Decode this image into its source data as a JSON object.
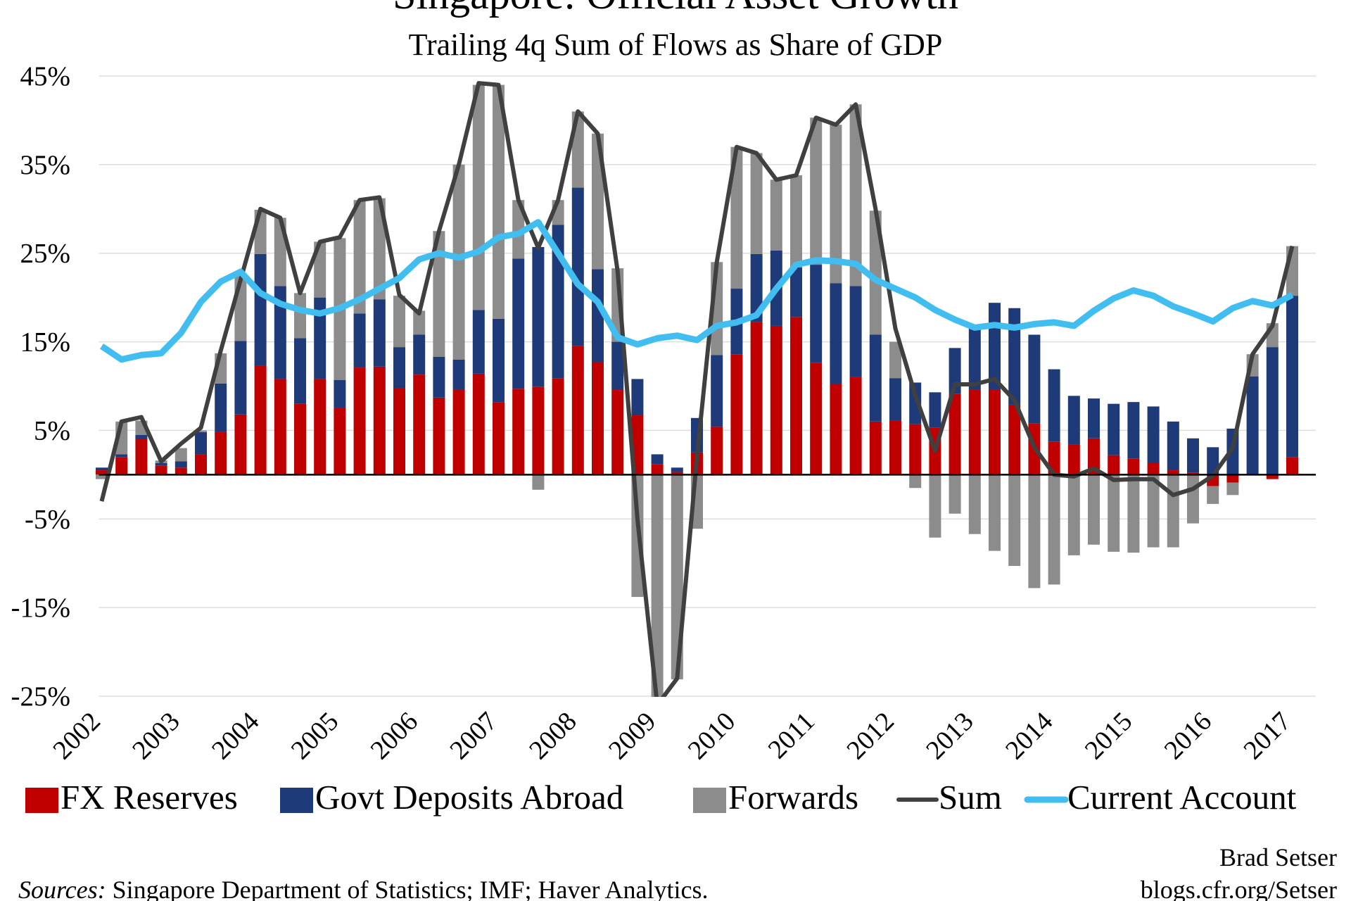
{
  "chart_data": {
    "type": "bar",
    "title": "Singapore: Official Asset Growth",
    "subtitle": "Trailing 4q Sum of Flows as Share of GDP",
    "source_label": "Sources:",
    "source": "Singapore Department of Statistics; IMF; Haver Analytics.",
    "author": "Brad Setser",
    "url": "blogs.cfr.org/Setser",
    "categories": [
      "2002",
      null,
      null,
      null,
      "2003",
      null,
      null,
      null,
      "2004",
      null,
      null,
      null,
      "2005",
      null,
      null,
      null,
      "2006",
      null,
      null,
      null,
      "2007",
      null,
      null,
      null,
      "2008",
      null,
      null,
      null,
      "2009",
      null,
      null,
      null,
      "2010",
      null,
      null,
      null,
      "2011",
      null,
      null,
      null,
      "2012",
      null,
      null,
      null,
      "2013",
      null,
      null,
      null,
      "2014",
      null,
      null,
      null,
      "2015",
      null,
      null,
      null,
      "2016",
      null,
      null,
      null,
      "2017"
    ],
    "series": [
      {
        "name": "FX Reserves",
        "type": "bar",
        "color": "#c00000",
        "values": [
          0.5,
          2,
          4,
          1,
          0.8,
          2.3,
          4.8,
          6.8,
          12.3,
          10.8,
          8,
          10.8,
          7.5,
          12.1,
          12.2,
          9.8,
          11.3,
          8.7,
          9.6,
          11.4,
          8.2,
          9.7,
          9.9,
          10.9,
          14.5,
          12.7,
          9.6,
          6.7,
          1.2,
          0.3,
          2.5,
          5.4,
          13.6,
          17.2,
          16.8,
          17.8,
          12.6,
          10.2,
          11,
          6,
          6.1,
          5.7,
          5.3,
          9.1,
          9.6,
          9.6,
          7.9,
          5.8,
          3.7,
          3.4,
          4.1,
          2.2,
          1.8,
          1.3,
          0.5,
          0.2,
          -1.3,
          -0.9,
          0.1,
          -0.5,
          2
        ]
      },
      {
        "name": "Govt Deposits Abroad",
        "type": "bar",
        "color": "#1f3a78",
        "values": [
          0.3,
          0.3,
          0.5,
          0.3,
          0.7,
          2.5,
          5.5,
          8.3,
          12.6,
          10.5,
          7.4,
          9.2,
          3.2,
          6.1,
          7.6,
          4.6,
          4.5,
          4.6,
          3.4,
          7.2,
          9.4,
          14.7,
          15.8,
          17.3,
          17.9,
          10.5,
          5.4,
          4.1,
          1.1,
          0.5,
          3.9,
          8.1,
          7.4,
          7.7,
          8.5,
          5.6,
          11.1,
          11.4,
          10.3,
          9.8,
          4.8,
          4.7,
          4,
          5.2,
          6.9,
          9.8,
          10.9,
          10,
          8.2,
          5.5,
          4.5,
          5.8,
          6.4,
          6.4,
          5.5,
          3.9,
          3.1,
          5.2,
          11,
          14.4,
          18.2
        ]
      },
      {
        "name": "Forwards",
        "type": "bar",
        "color": "#8c8c8c",
        "values": [
          -0.5,
          3.7,
          1.6,
          0.3,
          1.5,
          0.2,
          3.4,
          7.3,
          5,
          7.7,
          5.1,
          6.3,
          16,
          12.8,
          11.4,
          5.8,
          2.7,
          14.2,
          22,
          25.4,
          26.4,
          6.6,
          -1.7,
          2.8,
          8.6,
          15.3,
          8.3,
          -13.8,
          -26,
          -23.1,
          -6.1,
          10.5,
          16,
          11.4,
          8,
          10.4,
          16.6,
          17.9,
          20.5,
          14,
          4.1,
          -1.5,
          -7.1,
          -4.4,
          -6.7,
          -8.6,
          -10.3,
          -12.8,
          -12.4,
          -9.1,
          -7.9,
          -8.7,
          -8.8,
          -8.2,
          -8.2,
          -5.5,
          -2,
          -1.4,
          2.5,
          2.7,
          5.6
        ]
      },
      {
        "name": "Sum",
        "type": "line",
        "color": "#404040",
        "values": [
          -3,
          6,
          6.5,
          1.5,
          3.5,
          5.3,
          14,
          22,
          30,
          29,
          20.5,
          26.3,
          26.8,
          31,
          31.3,
          20.3,
          18.2,
          27.5,
          35,
          44.2,
          44,
          31,
          25.6,
          31,
          41,
          38.5,
          23,
          -5,
          -26,
          -23,
          2,
          24,
          37,
          36.3,
          33.3,
          33.8,
          40.3,
          39.5,
          41.8,
          30,
          16.5,
          9,
          2.7,
          10.2,
          10.2,
          10.8,
          8.4,
          3.1,
          0,
          -0.2,
          0.7,
          -0.6,
          -0.5,
          -0.5,
          -2.3,
          -1.6,
          -0.1,
          3,
          13.6,
          16.8,
          25.8
        ]
      },
      {
        "name": "Current Account",
        "type": "line",
        "color": "#41bdf0",
        "values": [
          14.5,
          13,
          13.5,
          13.7,
          16,
          19.5,
          21.8,
          22.9,
          20.5,
          19.3,
          18.6,
          18.2,
          18.8,
          19.8,
          21,
          22.2,
          24.3,
          25,
          24.5,
          25.2,
          26.8,
          27.2,
          28.5,
          25,
          21.5,
          19.5,
          15.5,
          14.7,
          15.4,
          15.7,
          15.2,
          16.8,
          17.2,
          18,
          21,
          23.7,
          24.2,
          24.1,
          23.8,
          22,
          21,
          20,
          18.6,
          17.5,
          16.6,
          16.9,
          16.6,
          17,
          17.2,
          16.8,
          18.5,
          19.9,
          20.8,
          20.2,
          19,
          18.2,
          17.3,
          18.8,
          19.6,
          19.1,
          20.3
        ]
      }
    ],
    "ylim": [
      -25,
      45
    ],
    "yticks": [
      {
        "value": -25,
        "label": "-25%"
      },
      {
        "value": -15,
        "label": "-15%"
      },
      {
        "value": -5,
        "label": "-5%"
      },
      {
        "value": 5,
        "label": "5%"
      },
      {
        "value": 15,
        "label": "15%"
      },
      {
        "value": 25,
        "label": "25%"
      },
      {
        "value": 35,
        "label": "35%"
      },
      {
        "value": 45,
        "label": "45%"
      }
    ],
    "grid": true
  }
}
